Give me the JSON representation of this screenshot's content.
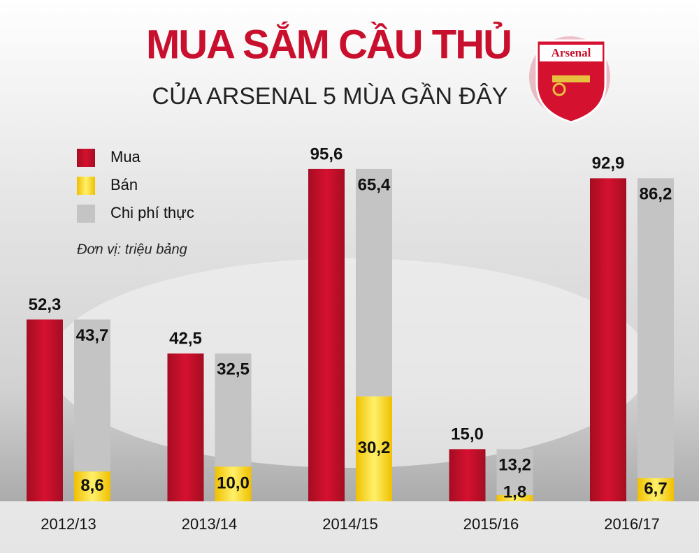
{
  "chart_data": {
    "type": "bar",
    "title": "MUA SẮM CẦU THỦ",
    "subtitle": "CỦA ARSENAL 5 MÙA GẦN ĐÂY",
    "logo_text": "Arsenal",
    "unit_note": "Đơn vị: triệu bảng",
    "categories": [
      "2012/13",
      "2013/14",
      "2014/15",
      "2015/16",
      "2016/17"
    ],
    "series": [
      {
        "name": "Mua",
        "color": "#c8102e",
        "values": [
          52.3,
          42.5,
          95.6,
          15.0,
          92.9
        ],
        "value_labels": [
          "52,3",
          "42,5",
          "95,6",
          "15,0",
          "92,9"
        ]
      },
      {
        "name": "Bán",
        "color": "#f7d417",
        "values": [
          8.6,
          10.0,
          30.2,
          1.8,
          6.7
        ],
        "value_labels": [
          "8,6",
          "10,0",
          "30,2",
          "1,8",
          "6,7"
        ]
      },
      {
        "name": "Chi phí thực",
        "color": "#c4c4c4",
        "values": [
          43.7,
          32.5,
          65.4,
          13.2,
          86.2
        ],
        "value_labels": [
          "43,7",
          "32,5",
          "65,4",
          "13,2",
          "86,2"
        ]
      }
    ]
  }
}
